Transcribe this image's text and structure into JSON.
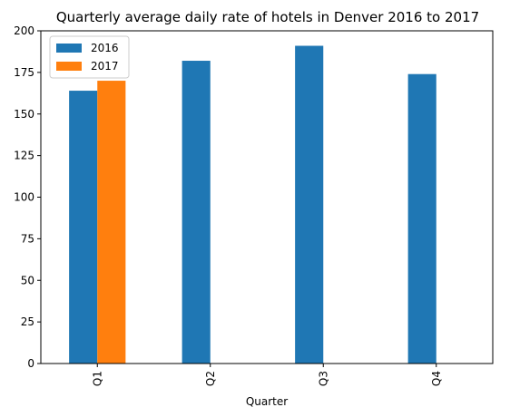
{
  "chart_data": {
    "type": "bar",
    "title": "Quarterly average daily rate of hotels in Denver 2016 to 2017",
    "xlabel": "Quarter",
    "ylabel": "",
    "categories": [
      "Q1",
      "Q2",
      "Q3",
      "Q4"
    ],
    "series": [
      {
        "name": "2016",
        "values": [
          164,
          182,
          191,
          174
        ],
        "color": "#1f77b4"
      },
      {
        "name": "2017",
        "values": [
          170,
          null,
          null,
          null
        ],
        "color": "#ff7f0e"
      }
    ],
    "ylim": [
      0,
      200
    ],
    "yticks": [
      0,
      25,
      50,
      75,
      100,
      125,
      150,
      175,
      200
    ],
    "grid": false,
    "legend_position": "top-left"
  }
}
